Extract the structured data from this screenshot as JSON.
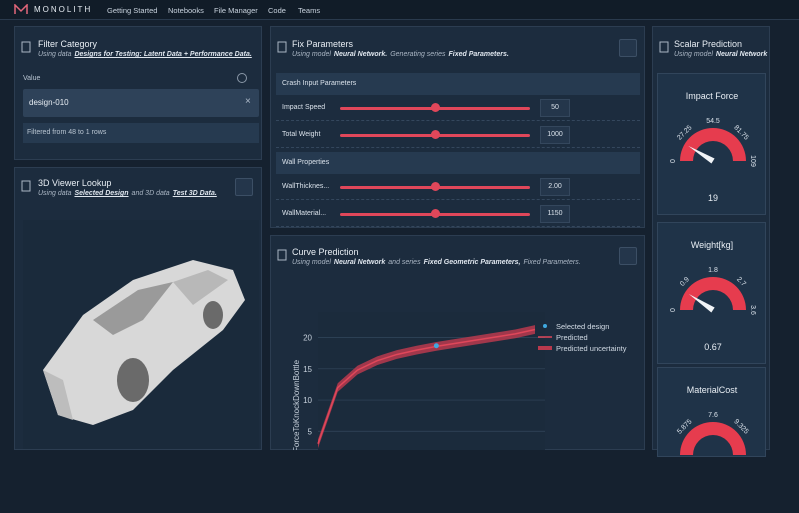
{
  "nav": {
    "brand": "MONOLITH",
    "items": [
      "Getting Started",
      "Notebooks",
      "File Manager",
      "Code",
      "Teams"
    ]
  },
  "filter": {
    "title": "Filter Category",
    "subtitle": [
      "Using data",
      "Designs for Testing: Latent Data + Performance Data."
    ],
    "value_label": "Value",
    "input": "design-010",
    "status": "Filtered from 48 to 1 rows"
  },
  "viewer": {
    "title": "3D Viewer Lookup",
    "subtitle": [
      "Using data",
      "Selected Design",
      "and 3D data",
      "Test 3D Data."
    ]
  },
  "params": {
    "title": "Fix Parameters",
    "subtitle": [
      "Using model",
      "Neural Network.",
      "Generating series",
      "Fixed Parameters."
    ],
    "sections": [
      {
        "heading": "Crash Input Parameters",
        "rows": [
          {
            "label": "Impact Speed",
            "value": "50"
          },
          {
            "label": "Total Weight",
            "value": "1000"
          }
        ]
      },
      {
        "heading": "Wall Properties",
        "rows": [
          {
            "label": "WallThicknes...",
            "value": "2.00"
          },
          {
            "label": "WallMaterial...",
            "value": "1150"
          }
        ]
      }
    ]
  },
  "curve": {
    "title": "Curve Prediction",
    "subtitle": [
      "Using model",
      "Neural Network",
      "and series",
      "Fixed Geometric Parameters,",
      "Fixed Parameters."
    ]
  },
  "chart_data": {
    "type": "line",
    "y_label": "ForceToKnockDownBottle",
    "ylim": [
      2,
      22.5
    ],
    "yticks": [
      5,
      10,
      15,
      20
    ],
    "grid": true,
    "series": [
      {
        "name": "Selected design",
        "color": "#3fa9e0",
        "values": [
          null,
          null,
          null,
          null,
          null,
          null,
          18.7,
          null,
          null,
          null,
          null,
          null
        ]
      },
      {
        "name": "Predicted",
        "color": "#e0475a",
        "values": [
          3,
          12,
          14.8,
          16.3,
          17.3,
          18.0,
          18.6,
          19.1,
          19.6,
          20.1,
          20.6,
          21.3
        ]
      },
      {
        "name": "Predicted uncertainty",
        "color": "#b8394d",
        "values": [
          0.7,
          0.7,
          0.7,
          0.7,
          0.7,
          0.7,
          0.7,
          0.7,
          0.7,
          0.7,
          0.7,
          0.7
        ]
      }
    ]
  },
  "scalar": {
    "title": "Scalar Prediction",
    "subtitle": [
      "Using model",
      "Neural Network"
    ],
    "gauges": [
      {
        "title": "Impact Force",
        "range": [
          0,
          109
        ],
        "ticks": [
          0,
          27.25,
          54.5,
          81.75,
          109
        ],
        "value": 19
      },
      {
        "title": "Weight[kg]",
        "range": [
          0,
          3.6
        ],
        "ticks": [
          0,
          0.9,
          1.8,
          2.7,
          3.6
        ],
        "value": 0.67
      },
      {
        "title": "MaterialCost",
        "range": [
          4.15,
          11.05
        ],
        "ticks": [
          5.875,
          7.6,
          9.325
        ]
      }
    ]
  }
}
